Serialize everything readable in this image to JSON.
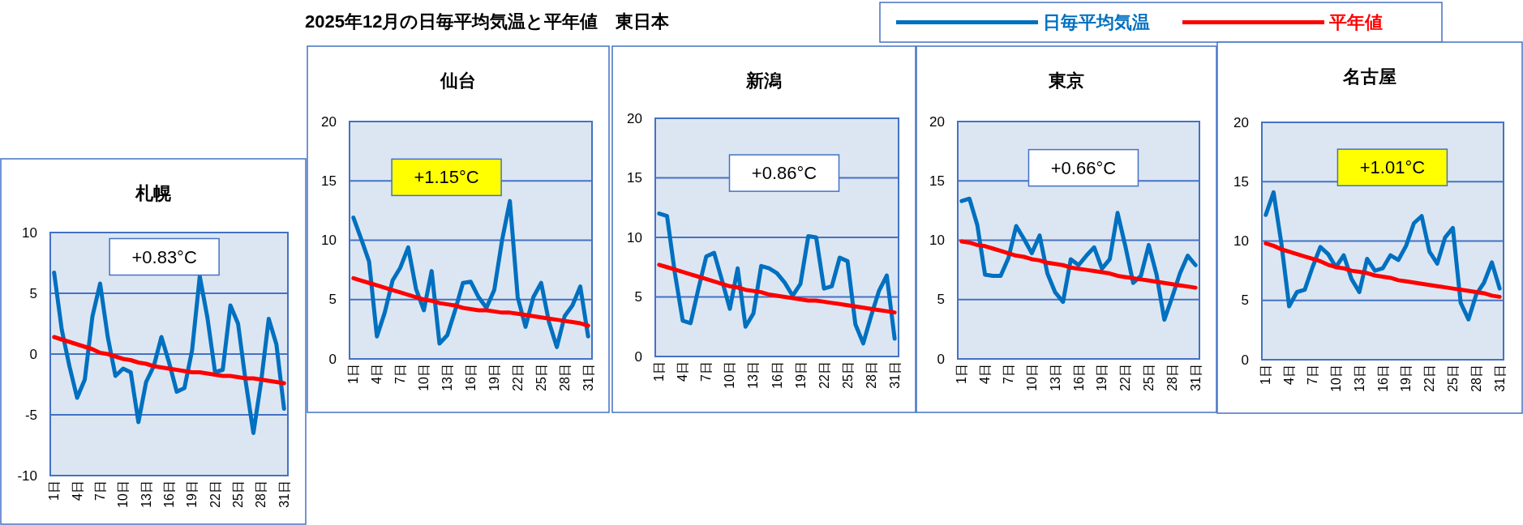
{
  "chart_data": [
    {
      "type": "other",
      "title": "2025年12月の日毎平均気温と平年値　東日本"
    },
    {
      "type": "line",
      "title": "札幌",
      "categories": [
        "1日",
        null,
        null,
        "4日",
        null,
        null,
        "7日",
        null,
        null,
        "10日",
        null,
        null,
        "13日",
        null,
        null,
        "16日",
        null,
        null,
        "19日",
        null,
        null,
        "22日",
        null,
        null,
        "25日",
        null,
        null,
        "28日",
        null,
        null,
        "31日"
      ],
      "series": [
        {
          "name": "日毎平均気温",
          "color": "#0070c0",
          "values": [
            6.7,
            2.0,
            -1.0,
            -3.6,
            -2.1,
            3.1,
            5.8,
            1.4,
            -1.8,
            -1.2,
            -1.5,
            -5.6,
            -2.3,
            -1.0,
            1.4,
            -0.7,
            -3.1,
            -2.8,
            0.3,
            6.4,
            3.0,
            -1.5,
            -1.3,
            4.0,
            2.5,
            -2.3,
            -6.5,
            -2.3,
            2.9,
            0.8,
            -4.5
          ]
        },
        {
          "name": "平年値",
          "color": "#ff0000",
          "values": [
            1.4,
            1.2,
            1.0,
            0.8,
            0.6,
            0.4,
            0.1,
            0.0,
            -0.2,
            -0.4,
            -0.5,
            -0.7,
            -0.8,
            -1.0,
            -1.1,
            -1.2,
            -1.3,
            -1.4,
            -1.5,
            -1.5,
            -1.6,
            -1.7,
            -1.8,
            -1.8,
            -1.9,
            -2.0,
            -2.0,
            -2.1,
            -2.2,
            -2.3,
            -2.4
          ]
        }
      ],
      "ylim": [
        -10,
        10
      ],
      "yticks": [
        -10,
        -5,
        0,
        5,
        10
      ],
      "grid": "y",
      "legend": "top",
      "annotations": [
        "+0.83°C"
      ]
    },
    {
      "type": "line",
      "title": "仙台",
      "categories": [
        "1日",
        null,
        null,
        "4日",
        null,
        null,
        "7日",
        null,
        null,
        "10日",
        null,
        null,
        "13日",
        null,
        null,
        "16日",
        null,
        null,
        "19日",
        null,
        null,
        "22日",
        null,
        null,
        "25日",
        null,
        null,
        "28日",
        null,
        null,
        "31日"
      ],
      "series": [
        {
          "color": "#0070c0",
          "values": [
            11.9,
            10.1,
            8.2,
            1.9,
            3.9,
            6.6,
            7.7,
            9.4,
            5.9,
            4.1,
            7.4,
            1.3,
            2.0,
            4.1,
            6.4,
            6.5,
            5.2,
            4.3,
            5.8,
            10.0,
            13.3,
            5.2,
            2.7,
            5.2,
            6.4,
            3.1,
            1.0,
            3.6,
            4.5,
            6.1,
            1.9
          ]
        },
        {
          "color": "#ff0000",
          "values": [
            6.8,
            6.6,
            6.4,
            6.2,
            6.0,
            5.8,
            5.6,
            5.4,
            5.2,
            5.0,
            4.9,
            4.7,
            4.6,
            4.5,
            4.3,
            4.2,
            4.1,
            4.1,
            4.0,
            3.9,
            3.9,
            3.8,
            3.7,
            3.6,
            3.5,
            3.4,
            3.3,
            3.2,
            3.1,
            3.0,
            2.8
          ]
        }
      ],
      "ylim": [
        0,
        20
      ],
      "yticks": [
        0,
        5,
        10,
        15,
        20
      ],
      "grid": "y",
      "annotations": [
        "+1.15°C"
      ]
    },
    {
      "type": "line",
      "title": "新潟",
      "categories": [
        "1日",
        null,
        null,
        "4日",
        null,
        null,
        "7日",
        null,
        null,
        "10日",
        null,
        null,
        "13日",
        null,
        null,
        "16日",
        null,
        null,
        "19日",
        null,
        null,
        "22日",
        null,
        null,
        "25日",
        null,
        null,
        "28日",
        null,
        null,
        "31日"
      ],
      "series": [
        {
          "color": "#0070c0",
          "values": [
            12.0,
            11.8,
            7.0,
            3.0,
            2.8,
            5.7,
            8.4,
            8.7,
            6.4,
            4.0,
            7.4,
            2.5,
            3.6,
            7.6,
            7.4,
            7.0,
            6.2,
            5.1,
            6.1,
            10.1,
            10.0,
            5.7,
            5.9,
            8.3,
            8.0,
            2.7,
            1.1,
            3.4,
            5.5,
            6.8,
            1.5
          ]
        },
        {
          "color": "#ff0000",
          "values": [
            7.7,
            7.5,
            7.3,
            7.1,
            6.9,
            6.7,
            6.5,
            6.3,
            6.1,
            5.9,
            5.8,
            5.6,
            5.5,
            5.4,
            5.2,
            5.1,
            5.0,
            4.9,
            4.8,
            4.7,
            4.7,
            4.6,
            4.5,
            4.4,
            4.3,
            4.2,
            4.1,
            4.0,
            3.9,
            3.8,
            3.7
          ]
        }
      ],
      "ylim": [
        0,
        20
      ],
      "yticks": [
        0,
        5,
        10,
        15,
        20
      ],
      "grid": "y",
      "annotations": [
        "+0.86°C"
      ]
    },
    {
      "type": "line",
      "title": "東京",
      "categories": [
        "1日",
        null,
        null,
        "4日",
        null,
        null,
        "7日",
        null,
        null,
        "10日",
        null,
        null,
        "13日",
        null,
        null,
        "16日",
        null,
        null,
        "19日",
        null,
        null,
        "22日",
        null,
        null,
        "25日",
        null,
        null,
        "28日",
        null,
        null,
        "31日"
      ],
      "series": [
        {
          "color": "#0070c0",
          "values": [
            13.3,
            13.5,
            11.3,
            7.1,
            7.0,
            7.0,
            8.5,
            11.2,
            10.1,
            8.9,
            10.4,
            7.2,
            5.6,
            4.8,
            8.4,
            7.9,
            8.7,
            9.4,
            7.6,
            8.4,
            12.3,
            9.5,
            6.4,
            7.0,
            9.6,
            7.1,
            3.3,
            5.2,
            7.2,
            8.7,
            7.9
          ]
        },
        {
          "color": "#ff0000",
          "values": [
            9.9,
            9.8,
            9.6,
            9.5,
            9.3,
            9.1,
            8.9,
            8.7,
            8.6,
            8.4,
            8.3,
            8.1,
            8.0,
            7.9,
            7.7,
            7.6,
            7.5,
            7.4,
            7.3,
            7.2,
            7.0,
            6.9,
            6.8,
            6.7,
            6.6,
            6.5,
            6.4,
            6.3,
            6.2,
            6.1,
            6.0
          ]
        }
      ],
      "ylim": [
        0,
        20
      ],
      "yticks": [
        0,
        5,
        10,
        15,
        20
      ],
      "grid": "y",
      "annotations": [
        "+0.66°C"
      ]
    },
    {
      "type": "line",
      "title": "名古屋",
      "categories": [
        "1日",
        null,
        null,
        "4日",
        null,
        null,
        "7日",
        null,
        null,
        "10日",
        null,
        null,
        "13日",
        null,
        null,
        "16日",
        null,
        null,
        "19日",
        null,
        null,
        "22日",
        null,
        null,
        "25日",
        null,
        null,
        "28日",
        null,
        null,
        "31日"
      ],
      "series": [
        {
          "color": "#0070c0",
          "values": [
            12.2,
            14.1,
            9.8,
            4.5,
            5.7,
            5.9,
            7.8,
            9.5,
            8.9,
            7.8,
            8.8,
            6.8,
            5.7,
            8.5,
            7.5,
            7.7,
            8.8,
            8.4,
            9.6,
            11.5,
            12.1,
            9.1,
            8.1,
            10.3,
            11.1,
            4.8,
            3.4,
            5.5,
            6.5,
            8.2,
            6.0
          ]
        },
        {
          "color": "#ff0000",
          "values": [
            9.8,
            9.6,
            9.3,
            9.1,
            8.9,
            8.7,
            8.5,
            8.3,
            8.0,
            7.8,
            7.7,
            7.5,
            7.4,
            7.3,
            7.1,
            7.0,
            6.9,
            6.7,
            6.6,
            6.5,
            6.4,
            6.3,
            6.2,
            6.1,
            6.0,
            5.9,
            5.8,
            5.7,
            5.6,
            5.4,
            5.3
          ]
        }
      ],
      "ylim": [
        0,
        20
      ],
      "yticks": [
        0,
        5,
        10,
        15,
        20
      ],
      "grid": "y",
      "annotations": [
        "+1.01°C"
      ]
    }
  ]
}
